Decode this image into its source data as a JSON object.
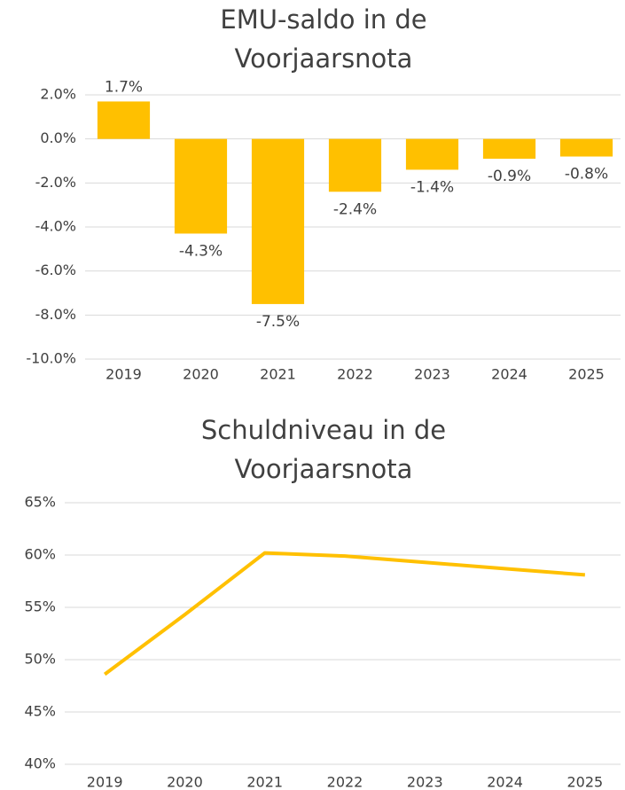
{
  "chart_data": [
    {
      "type": "bar",
      "title": "EMU-saldo in de Voorjaarsnota",
      "categories": [
        "2019",
        "2020",
        "2021",
        "2022",
        "2023",
        "2024",
        "2025"
      ],
      "values": [
        1.7,
        -4.3,
        -7.5,
        -2.4,
        -1.4,
        -0.9,
        -0.8
      ],
      "value_labels": [
        "1.7%",
        "-4.3%",
        "-7.5%",
        "-2.4%",
        "-1.4%",
        "-0.9%",
        "-0.8%"
      ],
      "color": "#ffc000",
      "ylim": [
        -10,
        2
      ],
      "yticks": [
        {
          "value": 2,
          "label": "2.0%"
        },
        {
          "value": 0,
          "label": "0.0%"
        },
        {
          "value": -2,
          "label": "-2.0%"
        },
        {
          "value": -4,
          "label": "-4.0%"
        },
        {
          "value": -6,
          "label": "-6.0%"
        },
        {
          "value": -8,
          "label": "-8.0%"
        },
        {
          "value": -10,
          "label": "-10.0%"
        }
      ],
      "grid": true
    },
    {
      "type": "line",
      "title": "Schuldniveau in de Voorjaarsnota",
      "categories": [
        "2019",
        "2020",
        "2021",
        "2022",
        "2023",
        "2024",
        "2025"
      ],
      "values": [
        48.6,
        54.3,
        60.2,
        59.9,
        59.3,
        58.7,
        58.1
      ],
      "color": "#ffc000",
      "ylim": [
        40,
        65
      ],
      "yticks": [
        {
          "value": 65,
          "label": "65%"
        },
        {
          "value": 60,
          "label": "60%"
        },
        {
          "value": 55,
          "label": "55%"
        },
        {
          "value": 50,
          "label": "50%"
        },
        {
          "value": 45,
          "label": "45%"
        },
        {
          "value": 40,
          "label": "40%"
        }
      ],
      "grid": true
    }
  ]
}
